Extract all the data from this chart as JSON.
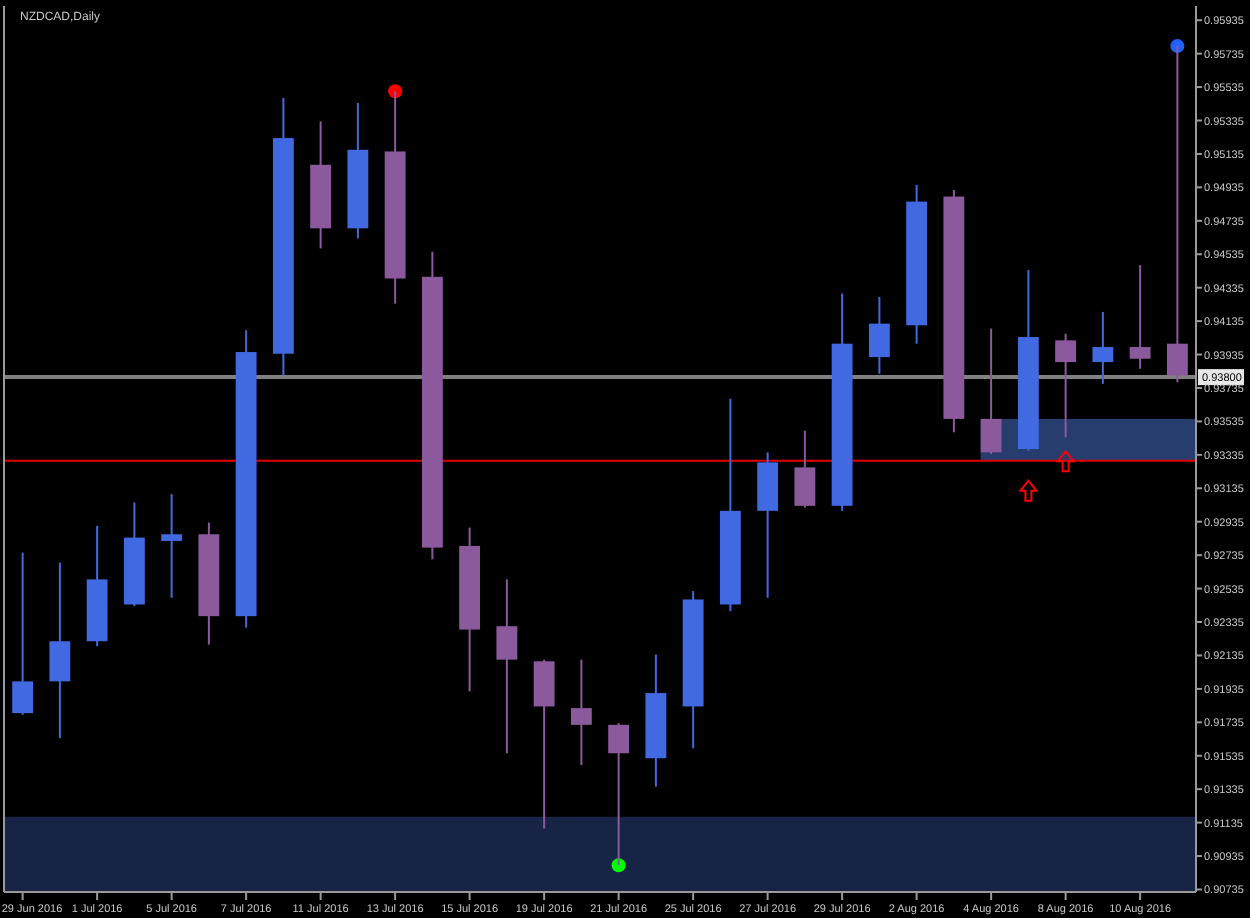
{
  "chart_data": {
    "type": "candlestick",
    "title": "NZDCAD,Daily",
    "categories": [
      "29 Jun 2016",
      null,
      "1 Jul 2016",
      null,
      "5 Jul 2016",
      null,
      "7 Jul 2016",
      null,
      "11 Jul 2016",
      null,
      "13 Jul 2016",
      null,
      "15 Jul 2016",
      null,
      "19 Jul 2016",
      null,
      "21 Jul 2016",
      null,
      "25 Jul 2016",
      null,
      "27 Jul 2016",
      null,
      "29 Jul 2016",
      null,
      "2 Aug 2016",
      null,
      "4 Aug 2016",
      null,
      "8 Aug 2016",
      null,
      "10 Aug 2016",
      null
    ],
    "ohlc": [
      [
        0.9179,
        0.9275,
        0.9178,
        0.9198
      ],
      [
        0.9198,
        0.9269,
        0.9164,
        0.9222
      ],
      [
        0.9222,
        0.9291,
        0.9219,
        0.9259
      ],
      [
        0.9244,
        0.9305,
        0.9243,
        0.9284
      ],
      [
        0.9282,
        0.931,
        0.9248,
        0.9286
      ],
      [
        0.9286,
        0.9293,
        0.922,
        0.9237
      ],
      [
        0.9237,
        0.9408,
        0.923,
        0.9395
      ],
      [
        0.9394,
        0.9547,
        0.9381,
        0.9523
      ],
      [
        0.9507,
        0.9533,
        0.9457,
        0.9469
      ],
      [
        0.9469,
        0.9544,
        0.9463,
        0.9516
      ],
      [
        0.9515,
        0.9551,
        0.9424,
        0.9439
      ],
      [
        0.944,
        0.9455,
        0.9271,
        0.9278
      ],
      [
        0.9279,
        0.929,
        0.9192,
        0.9229
      ],
      [
        0.9231,
        0.9259,
        0.9155,
        0.9211
      ],
      [
        0.921,
        0.9211,
        0.911,
        0.9183
      ],
      [
        0.9182,
        0.9211,
        0.9148,
        0.9172
      ],
      [
        0.9172,
        0.9173,
        0.9088,
        0.9155
      ],
      [
        0.9152,
        0.9214,
        0.9135,
        0.9191
      ],
      [
        0.9183,
        0.9252,
        0.9158,
        0.9247
      ],
      [
        0.9244,
        0.9367,
        0.924,
        0.93
      ],
      [
        0.93,
        0.9335,
        0.9248,
        0.9329
      ],
      [
        0.9326,
        0.9348,
        0.9302,
        0.9303
      ],
      [
        0.9303,
        0.943,
        0.93,
        0.94
      ],
      [
        0.9392,
        0.9428,
        0.9382,
        0.9412
      ],
      [
        0.9411,
        0.9495,
        0.94,
        0.9485
      ],
      [
        0.9488,
        0.9492,
        0.9347,
        0.9355
      ],
      [
        0.9355,
        0.9409,
        0.9334,
        0.9335
      ],
      [
        0.9337,
        0.9444,
        0.9336,
        0.9404
      ],
      [
        0.9402,
        0.9406,
        0.9344,
        0.9389
      ],
      [
        0.9389,
        0.9419,
        0.9376,
        0.9398
      ],
      [
        0.9398,
        0.9447,
        0.9385,
        0.9391
      ],
      [
        0.94,
        0.9578,
        0.9377,
        0.9381
      ]
    ],
    "colors": [
      "#4169e1",
      "#4169e1",
      "#4169e1",
      "#4169e1",
      "#4169e1",
      "#8b5a9c",
      "#4169e1",
      "#4169e1",
      "#8b5a9c",
      "#4169e1",
      "#8b5a9c",
      "#8b5a9c",
      "#8b5a9c",
      "#8b5a9c",
      "#8b5a9c",
      "#8b5a9c",
      "#8b5a9c",
      "#4169e1",
      "#4169e1",
      "#4169e1",
      "#4169e1",
      "#8b5a9c",
      "#4169e1",
      "#4169e1",
      "#4169e1",
      "#8b5a9c",
      "#8b5a9c",
      "#4169e1",
      "#8b5a9c",
      "#4169e1",
      "#8b5a9c",
      "#8b5a9c"
    ],
    "series": [
      {
        "type": "scatter",
        "values": [
          null,
          null,
          null,
          null,
          null,
          null,
          null,
          null,
          null,
          null,
          0.9551,
          null,
          null,
          null,
          null,
          null,
          0.9088,
          null,
          null,
          null,
          null,
          null,
          null,
          null,
          null,
          null,
          null,
          null,
          null,
          null,
          null,
          0.9578
        ],
        "colors": [
          null,
          null,
          null,
          null,
          null,
          null,
          null,
          null,
          null,
          null,
          "#ff0000",
          null,
          null,
          null,
          null,
          null,
          "#00ff00",
          null,
          null,
          null,
          null,
          null,
          null,
          null,
          null,
          null,
          null,
          null,
          null,
          null,
          null,
          "#2060ff"
        ]
      }
    ],
    "marker": "circle",
    "ylim": [
      0.9072,
      0.9602
    ],
    "yticks": [
      0.90735,
      0.90935,
      0.91135,
      0.91335,
      0.91535,
      0.91735,
      0.91935,
      0.92135,
      0.92335,
      0.92535,
      0.92735,
      0.92935,
      0.93135,
      0.93335,
      0.93535,
      0.93735,
      0.93935,
      0.94135,
      0.94335,
      0.94535,
      0.94735,
      0.94935,
      0.95135,
      0.95335,
      0.95535,
      0.95735,
      0.95935
    ],
    "ref_lines": [
      {
        "axis": "y",
        "value": 0.938,
        "label": "0.93800",
        "color": "#808080"
      },
      {
        "axis": "y",
        "value": 0.933,
        "color": "#e00000"
      }
    ],
    "bands": [
      {
        "axis": "y",
        "from": 0.9072,
        "to": 0.9117,
        "color": "#172446"
      },
      {
        "axis": "y",
        "from": 0.933,
        "to": 0.9355,
        "color": "#263d6e"
      }
    ]
  }
}
